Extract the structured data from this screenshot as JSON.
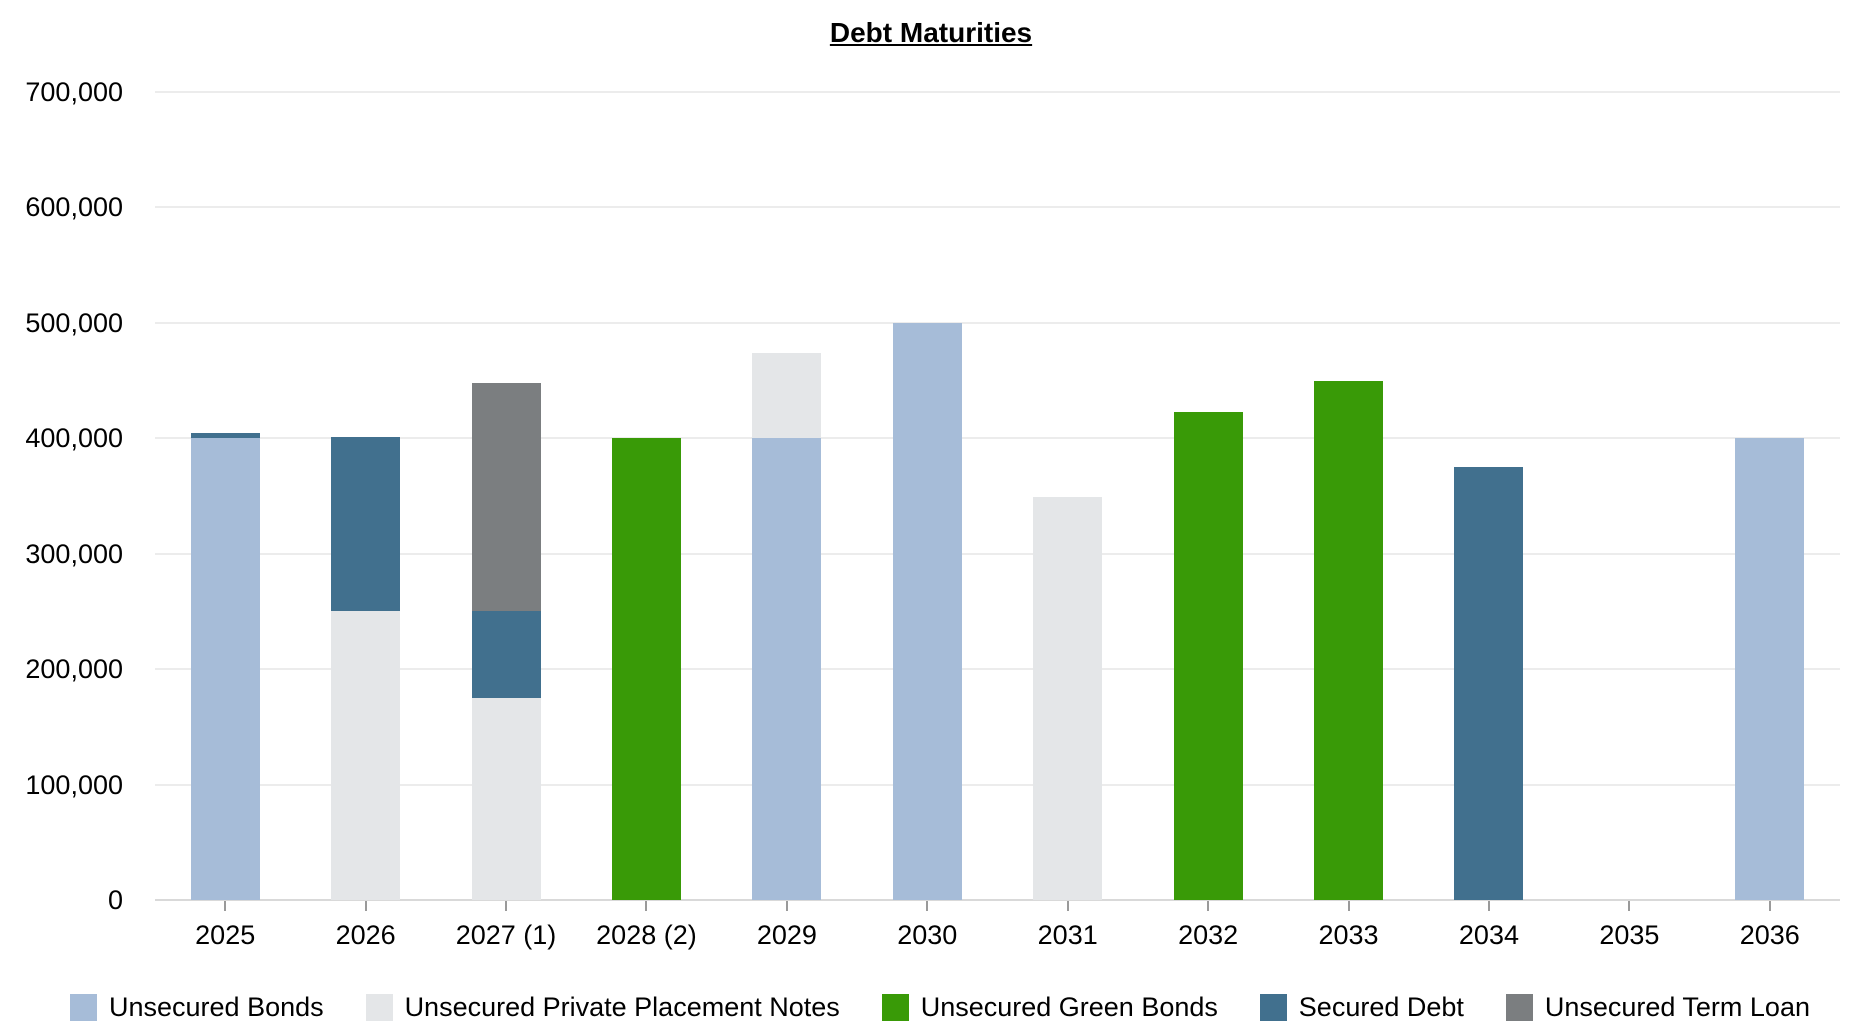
{
  "page": {
    "background": "#ffffff"
  },
  "chart_data": {
    "type": "bar",
    "stacked": true,
    "title": "Debt Maturities",
    "xlabel": "",
    "ylabel": "",
    "grid": "horizontal",
    "legend_position": "bottom",
    "ylim": [
      0,
      700000
    ],
    "y_ticks": [
      0,
      100000,
      200000,
      300000,
      400000,
      500000,
      600000,
      700000
    ],
    "y_tick_labels": [
      "0",
      "100,000",
      "200,000",
      "300,000",
      "400,000",
      "500,000",
      "600,000",
      "700,000"
    ],
    "categories": [
      "2025",
      "2026",
      "2027 (1)",
      "2028 (2)",
      "2029",
      "2030",
      "2031",
      "2032",
      "2033",
      "2034",
      "2035",
      "2036"
    ],
    "series": [
      {
        "name": "Unsecured Bonds",
        "color": "#a6bcd8",
        "values": [
          400000,
          0,
          0,
          0,
          400000,
          500000,
          0,
          0,
          0,
          0,
          0,
          400000
        ]
      },
      {
        "name": "Unsecured Private Placement Notes",
        "color": "#e4e6e8",
        "values": [
          0,
          250000,
          175000,
          0,
          74000,
          0,
          349000,
          0,
          0,
          0,
          0,
          0
        ]
      },
      {
        "name": "Unsecured Green Bonds",
        "color": "#399a07",
        "values": [
          0,
          0,
          0,
          400000,
          0,
          0,
          0,
          423000,
          450000,
          0,
          0,
          0
        ]
      },
      {
        "name": "Secured Debt",
        "color": "#41708e",
        "values": [
          5000,
          151000,
          75000,
          0,
          0,
          0,
          0,
          0,
          0,
          375000,
          0,
          0
        ]
      },
      {
        "name": "Unsecured Term Loan",
        "color": "#7b7e80",
        "values": [
          0,
          0,
          198000,
          0,
          0,
          0,
          0,
          0,
          0,
          0,
          0,
          0
        ]
      }
    ]
  }
}
